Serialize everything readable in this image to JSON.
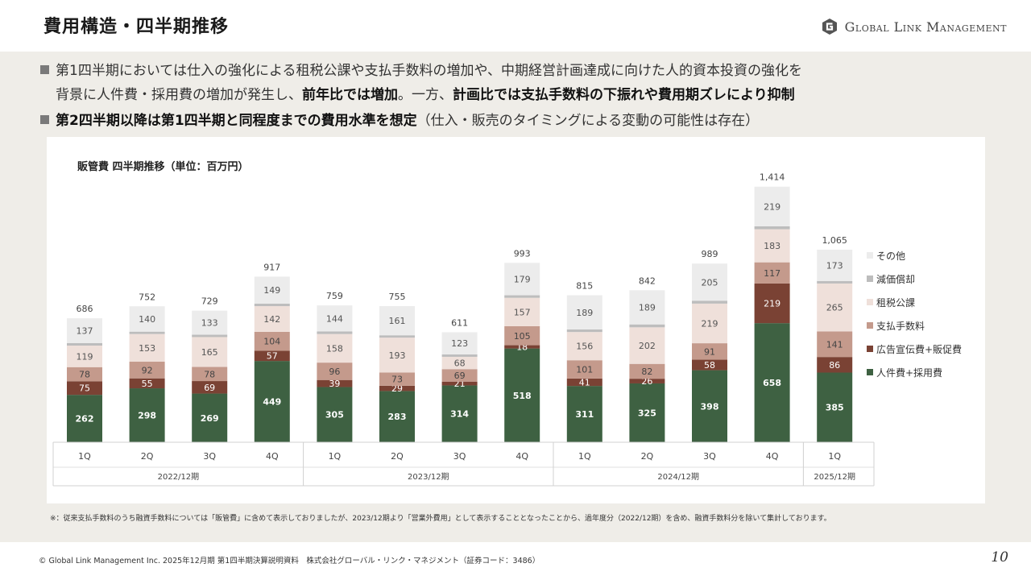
{
  "header": {
    "title": "費用構造・四半期推移",
    "brand": "Global Link Management"
  },
  "bullets": [
    {
      "line1": "第1四半期においては仕入の強化による租税公課や支払手数料の増加や、中期経営計画達成に向けた人的資本投資の強化を",
      "line2_pre": "背景に人件費・採用費の増加が発生し、",
      "line2_b1": "前年比では増加",
      "line2_mid": "。一方、",
      "line2_b2": "計画比では支払手数料の下振れや費用期ズレにより抑制"
    },
    {
      "bold": "第2四半期以降は第1四半期と同程度までの費用水準を想定",
      "normal": "（仕入・販売のタイミングによる変動の可能性は存在）"
    }
  ],
  "chart_data": {
    "type": "bar",
    "stacked": true,
    "title": "販管費 四半期推移（単位：百万円）",
    "categories": [
      "1Q",
      "2Q",
      "3Q",
      "4Q",
      "1Q",
      "2Q",
      "3Q",
      "4Q",
      "1Q",
      "2Q",
      "3Q",
      "4Q",
      "1Q"
    ],
    "groups": [
      {
        "label": "2022/12期",
        "count": 4
      },
      {
        "label": "2023/12期",
        "count": 4
      },
      {
        "label": "2024/12期",
        "count": 4
      },
      {
        "label": "2025/12期",
        "count": 1
      }
    ],
    "totals": [
      686,
      752,
      729,
      917,
      759,
      755,
      611,
      993,
      815,
      842,
      989,
      1414,
      1065
    ],
    "series": [
      {
        "name": "人件費+採用費",
        "color": "#3e6142",
        "label_color": "#ffffff",
        "values": [
          262,
          298,
          269,
          449,
          305,
          283,
          314,
          518,
          311,
          325,
          398,
          658,
          385
        ]
      },
      {
        "name": "広告宣伝費+販促費",
        "color": "#7a4234",
        "label_color": "#ffffff",
        "values": [
          75,
          55,
          69,
          57,
          39,
          29,
          21,
          18,
          41,
          26,
          58,
          219,
          86
        ]
      },
      {
        "name": "支払手数料",
        "color": "#c49a8c",
        "label_color": "#444444",
        "values": [
          78,
          92,
          78,
          104,
          96,
          73,
          69,
          105,
          101,
          82,
          91,
          117,
          141
        ]
      },
      {
        "name": "租税公課",
        "color": "#efe0da",
        "label_color": "#555555",
        "values": [
          119,
          153,
          165,
          142,
          158,
          193,
          68,
          157,
          156,
          202,
          219,
          183,
          265
        ]
      },
      {
        "name": "減価償却",
        "color": "#bdbdbd",
        "label_color": "#555555",
        "values": [
          14,
          13,
          13,
          14,
          14,
          13,
          13,
          14,
          14,
          16,
          16,
          16,
          14
        ]
      },
      {
        "name": "その他",
        "color": "#ececec",
        "label_color": "#555555",
        "values": [
          137,
          140,
          133,
          149,
          144,
          161,
          123,
          179,
          189,
          189,
          205,
          219,
          173
        ]
      }
    ],
    "legend_position": "right",
    "legend_order": [
      "その他",
      "減価償却",
      "租税公課",
      "支払手数料",
      "広告宣伝費+販促費",
      "人件費+採用費"
    ]
  },
  "footnote": "※：従来支払手数料のうち融資手数料については「販管費」に含めて表示しておりましたが、2023/12期より「営業外費用」として表示することとなったことから、過年度分（2022/12期）を含め、融資手数料分を除いて集計しております。",
  "footer": {
    "copyright": "© Global Link Management Inc. 2025年12月期 第1四半期決算説明資料　株式会社グローバル・リンク・マネジメント（証券コード：3486）",
    "page_number": "10"
  }
}
